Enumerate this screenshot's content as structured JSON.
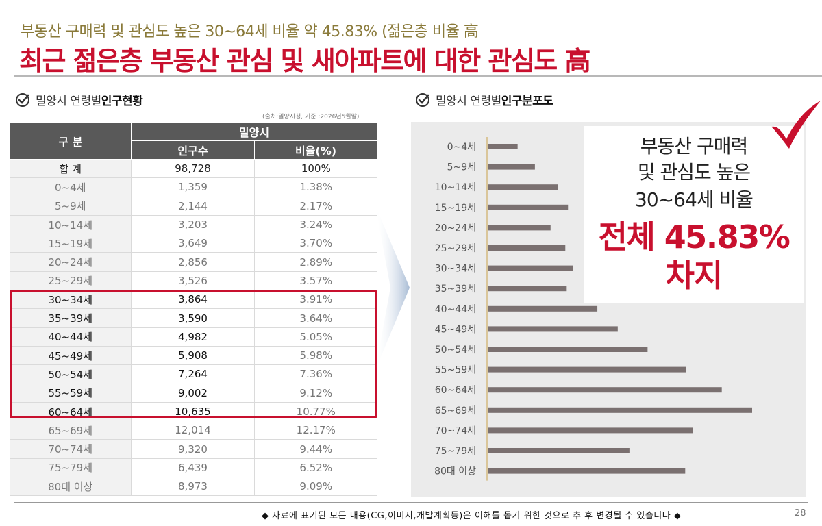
{
  "header": {
    "subtitle": "부동산 구매력 및 관심도 높은 30~64세 비율 약 45.83% (젊은층 비율 高",
    "title": "최근 젊은층 부동산 관심 및 새아파트에 대한 관심도 高"
  },
  "table_section": {
    "heading_prefix": "밀양시 연령별 ",
    "heading_bold": "인구현황",
    "source": "(출처:밀양시청, 기준 :2026년5월말)",
    "col_group": "구 분",
    "col_region": "밀양시",
    "col_population": "인구수",
    "col_ratio": "비율(%)",
    "rows": [
      {
        "label": "합 계",
        "population": "98,728",
        "ratio": "100%"
      },
      {
        "label": "0~4세",
        "population": "1,359",
        "ratio": "1.38%"
      },
      {
        "label": "5~9세",
        "population": "2,144",
        "ratio": "2.17%"
      },
      {
        "label": "10~14세",
        "population": "3,203",
        "ratio": "3.24%"
      },
      {
        "label": "15~19세",
        "population": "3,649",
        "ratio": "3.70%"
      },
      {
        "label": "20~24세",
        "population": "2,856",
        "ratio": "2.89%"
      },
      {
        "label": "25~29세",
        "population": "3,526",
        "ratio": "3.57%"
      },
      {
        "label": "30~34세",
        "population": "3,864",
        "ratio": "3.91%"
      },
      {
        "label": "35~39세",
        "population": "3,590",
        "ratio": "3.64%"
      },
      {
        "label": "40~44세",
        "population": "4,982",
        "ratio": "5.05%"
      },
      {
        "label": "45~49세",
        "population": "5,908",
        "ratio": "5.98%"
      },
      {
        "label": "50~54세",
        "population": "7,264",
        "ratio": "7.36%"
      },
      {
        "label": "55~59세",
        "population": "9,002",
        "ratio": "9.12%"
      },
      {
        "label": "60~64세",
        "population": "10,635",
        "ratio": "10.77%"
      },
      {
        "label": "65~69세",
        "population": "12,014",
        "ratio": "12.17%"
      },
      {
        "label": "70~74세",
        "population": "9,320",
        "ratio": "9.44%"
      },
      {
        "label": "75~79세",
        "population": "6,439",
        "ratio": "6.52%"
      },
      {
        "label": "80대 이상",
        "population": "8,973",
        "ratio": "9.09%"
      }
    ]
  },
  "chart_section": {
    "heading_prefix": "밀양시 연령별 ",
    "heading_bold": "인구분포도",
    "callout": {
      "line1": "부동산 구매력",
      "line2": "및 관심도 높은",
      "line3": "30~64세 비율",
      "line4": "전체 45.83%",
      "line5": "차지"
    }
  },
  "chart_data": {
    "type": "bar",
    "orientation": "horizontal",
    "categories": [
      "0~4세",
      "5~9세",
      "10~14세",
      "15~19세",
      "20~24세",
      "25~29세",
      "30~34세",
      "35~39세",
      "40~44세",
      "45~49세",
      "50~54세",
      "55~59세",
      "60~64세",
      "65~69세",
      "70~74세",
      "75~79세",
      "80대 이상"
    ],
    "values": [
      1359,
      2144,
      3203,
      3649,
      2856,
      3526,
      3864,
      3590,
      4982,
      5908,
      7264,
      9002,
      10635,
      12014,
      9320,
      6439,
      8973
    ],
    "xlim": [
      0,
      13500
    ],
    "grid": false,
    "legend": "none",
    "bar_color": "#7a7070"
  },
  "colors": {
    "accent": "#c8102e",
    "subtitle": "#8a7a3a",
    "table_header": "#595959"
  },
  "footer": {
    "note": "◆ 자료에 표기된 모든 내용(CG,이미지,개발계획등)은 이해를 돕기 위한 것으로 추 후 변경될 수 있습니다 ◆",
    "page": "28"
  }
}
